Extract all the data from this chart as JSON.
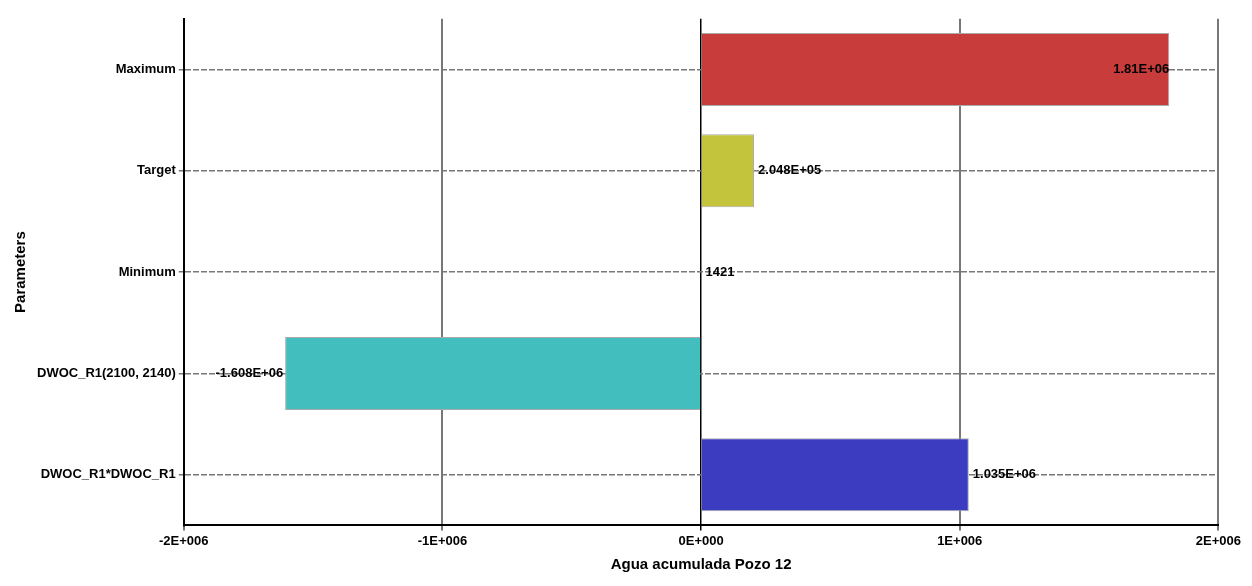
{
  "chart_data": {
    "type": "bar",
    "orientation": "horizontal",
    "xlabel": "Agua acumulada Pozo 12",
    "ylabel": "Parameters",
    "categories": [
      "Maximum",
      "Target",
      "Minimum",
      "DWOC_R1(2100, 2140)",
      "DWOC_R1*DWOC_R1"
    ],
    "values": [
      1810000,
      204800,
      1421,
      -1608000,
      1035000
    ],
    "value_labels": [
      "1.81E+06",
      "2.048E+05",
      "1421",
      "-1.608E+06",
      "1.035E+06"
    ],
    "colors": [
      "#c83c3c",
      "#c3c33c",
      "#3cb43c",
      "#42bebe",
      "#3c3cc0"
    ],
    "xlim": [
      -2000000,
      2000000
    ],
    "xticks": [
      {
        "value": -2000000,
        "label": "-2E+006"
      },
      {
        "value": -1000000,
        "label": "-1E+006"
      },
      {
        "value": 0,
        "label": "0E+000"
      },
      {
        "value": 1000000,
        "label": "1E+006"
      },
      {
        "value": 2000000,
        "label": "2E+006"
      }
    ],
    "grid": true,
    "legend": false
  }
}
